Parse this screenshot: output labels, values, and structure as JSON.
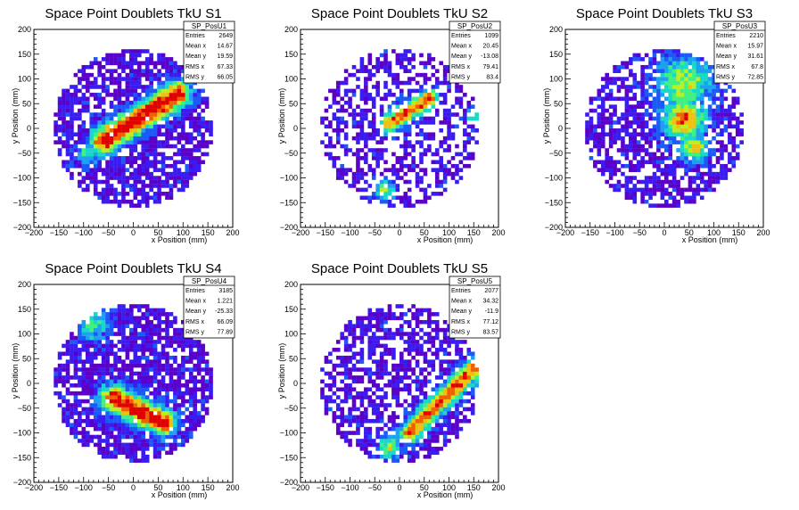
{
  "chart_data": [
    {
      "type": "heatmap",
      "title": "Space Point Doublets TkU S1",
      "xlabel": "x Position (mm)",
      "ylabel": "y Position (mm)",
      "xlim": [
        -200,
        200
      ],
      "ylim": [
        -200,
        200
      ],
      "xticks": [
        -200,
        -150,
        -100,
        -50,
        0,
        50,
        100,
        150,
        200
      ],
      "yticks": [
        -200,
        -150,
        -100,
        -50,
        0,
        50,
        100,
        150,
        200
      ],
      "bin_size_mm": 8,
      "active_radius_mm": 160,
      "stats": {
        "name": "SP_PosU1",
        "entries": "2649",
        "mean_x": "14.67",
        "mean_y": "19.59",
        "rms_x": "67.33",
        "rms_y": "66.05"
      },
      "stat_labels": {
        "entries": "Entries",
        "mean_x": "Mean x",
        "mean_y": "Mean y",
        "rms_x": "RMS x",
        "rms_y": "RMS y"
      },
      "features": [
        {
          "shape": "band",
          "from": [
            -60,
            -25
          ],
          "to": [
            90,
            70
          ],
          "width_mm": 28,
          "peak": 1.0
        },
        {
          "shape": "blob",
          "center": [
            -90,
            -50
          ],
          "radius_mm": 25,
          "peak": 0.45
        }
      ],
      "occupancy": 0.72
    },
    {
      "type": "heatmap",
      "title": "Space Point Doublets TkU S2",
      "xlabel": "x Position (mm)",
      "ylabel": "y Position (mm)",
      "xlim": [
        -200,
        200
      ],
      "ylim": [
        -200,
        200
      ],
      "xticks": [
        -200,
        -150,
        -100,
        -50,
        0,
        50,
        100,
        150,
        200
      ],
      "yticks": [
        -200,
        -150,
        -100,
        -50,
        0,
        50,
        100,
        150,
        200
      ],
      "bin_size_mm": 8,
      "active_radius_mm": 160,
      "stats": {
        "name": "SP_PosU2",
        "entries": "1099",
        "mean_x": "20.45",
        "mean_y": "-13.08",
        "rms_x": "79.41",
        "rms_y": "83.4"
      },
      "stat_labels": {
        "entries": "Entries",
        "mean_x": "Mean x",
        "mean_y": "Mean y",
        "rms_x": "RMS x",
        "rms_y": "RMS y"
      },
      "features": [
        {
          "shape": "band",
          "from": [
            -20,
            10
          ],
          "to": [
            60,
            60
          ],
          "width_mm": 20,
          "peak": 0.85
        },
        {
          "shape": "blob",
          "center": [
            -30,
            -125
          ],
          "radius_mm": 22,
          "peak": 0.55
        },
        {
          "shape": "blob",
          "center": [
            150,
            25
          ],
          "radius_mm": 15,
          "peak": 0.5
        }
      ],
      "occupancy": 0.5
    },
    {
      "type": "heatmap",
      "title": "Space Point Doublets TkU S3",
      "xlabel": "x Position (mm)",
      "ylabel": "y Position (mm)",
      "xlim": [
        -200,
        200
      ],
      "ylim": [
        -200,
        200
      ],
      "xticks": [
        -200,
        -150,
        -100,
        -50,
        0,
        50,
        100,
        150,
        200
      ],
      "yticks": [
        -200,
        -150,
        -100,
        -50,
        0,
        50,
        100,
        150,
        200
      ],
      "bin_size_mm": 8,
      "active_radius_mm": 160,
      "stats": {
        "name": "SP_PosU3",
        "entries": "2210",
        "mean_x": "15.97",
        "mean_y": "31.61",
        "rms_x": "67.8",
        "rms_y": "72.85"
      },
      "stat_labels": {
        "entries": "Entries",
        "mean_x": "Mean x",
        "mean_y": "Mean y",
        "rms_x": "RMS x",
        "rms_y": "RMS y"
      },
      "features": [
        {
          "shape": "blob",
          "center": [
            40,
            90
          ],
          "radius_mm": 60,
          "peak": 0.6
        },
        {
          "shape": "blob",
          "center": [
            40,
            20
          ],
          "radius_mm": 45,
          "peak": 0.85
        },
        {
          "shape": "blob",
          "center": [
            60,
            -40
          ],
          "radius_mm": 30,
          "peak": 0.7
        }
      ],
      "occupancy": 0.68
    },
    {
      "type": "heatmap",
      "title": "Space Point Doublets TkU S4",
      "xlabel": "x Position (mm)",
      "ylabel": "y Position (mm)",
      "xlim": [
        -200,
        200
      ],
      "ylim": [
        -200,
        200
      ],
      "xticks": [
        -200,
        -150,
        -100,
        -50,
        0,
        50,
        100,
        150,
        200
      ],
      "yticks": [
        -200,
        -150,
        -100,
        -50,
        0,
        50,
        100,
        150,
        200
      ],
      "bin_size_mm": 8,
      "active_radius_mm": 160,
      "stats": {
        "name": "SP_PosU4",
        "entries": "3185",
        "mean_x": "1.221",
        "mean_y": "-25.33",
        "rms_x": "66.09",
        "rms_y": "77.89"
      },
      "stat_labels": {
        "entries": "Entries",
        "mean_x": "Mean x",
        "mean_y": "Mean y",
        "rms_x": "RMS x",
        "rms_y": "RMS y"
      },
      "features": [
        {
          "shape": "band",
          "from": [
            -40,
            -30
          ],
          "to": [
            60,
            -80
          ],
          "width_mm": 28,
          "peak": 1.0
        },
        {
          "shape": "blob",
          "center": [
            -80,
            120
          ],
          "radius_mm": 35,
          "peak": 0.45
        }
      ],
      "occupancy": 0.8
    },
    {
      "type": "heatmap",
      "title": "Space Point Doublets TkU S5",
      "xlabel": "x Position (mm)",
      "ylabel": "y Position (mm)",
      "xlim": [
        -200,
        200
      ],
      "ylim": [
        -200,
        200
      ],
      "xticks": [
        -200,
        -150,
        -100,
        -50,
        0,
        50,
        100,
        150,
        200
      ],
      "yticks": [
        -200,
        -150,
        -100,
        -50,
        0,
        50,
        100,
        150,
        200
      ],
      "bin_size_mm": 8,
      "active_radius_mm": 160,
      "stats": {
        "name": "SP_PosU5",
        "entries": "2077",
        "mean_x": "34.32",
        "mean_y": "-11.9",
        "rms_x": "77.12",
        "rms_y": "83.57"
      },
      "stat_labels": {
        "entries": "Entries",
        "mean_x": "Mean x",
        "mean_y": "Mean y",
        "rms_x": "RMS x",
        "rms_y": "RMS y"
      },
      "features": [
        {
          "shape": "band",
          "from": [
            20,
            -100
          ],
          "to": [
            150,
            30
          ],
          "width_mm": 22,
          "peak": 0.85
        },
        {
          "shape": "blob",
          "center": [
            150,
            20
          ],
          "radius_mm": 25,
          "peak": 0.65
        },
        {
          "shape": "blob",
          "center": [
            -20,
            -130
          ],
          "radius_mm": 25,
          "peak": 0.6
        }
      ],
      "occupancy": 0.62
    }
  ],
  "palette": [
    "#5a00c8",
    "#3a1cf0",
    "#1c5af8",
    "#1ea0f0",
    "#18d8c8",
    "#40f080",
    "#b8f028",
    "#f0c010",
    "#f06000",
    "#e00000"
  ]
}
